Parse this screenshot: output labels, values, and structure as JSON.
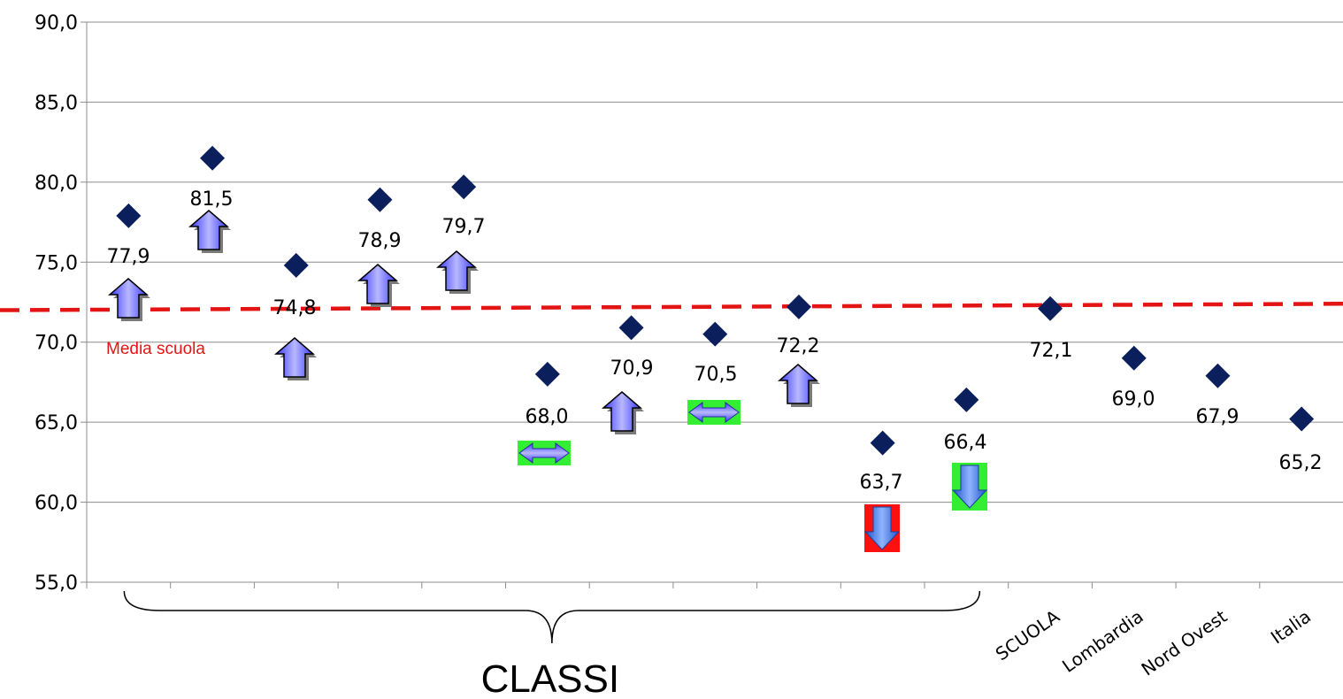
{
  "chart_data": {
    "type": "scatter",
    "ylim": [
      55,
      90
    ],
    "yticks": [
      "55,0",
      "60,0",
      "65,0",
      "70,0",
      "75,0",
      "80,0",
      "85,0",
      "90,0"
    ],
    "grid": true,
    "marker": "diamond",
    "colors": {
      "marker": "#0a1f5c",
      "grid": "#8c8c8c",
      "reference_line": "#e31414",
      "arrow_fill": "#6b6bff",
      "arrow_green_bg": "#33ee33",
      "arrow_red_bg": "#ff1010"
    },
    "points": [
      {
        "value": 77.9,
        "label": "77,9",
        "category": "",
        "trend": "up",
        "highlight": ""
      },
      {
        "value": 81.5,
        "label": "81,5",
        "category": "",
        "trend": "up",
        "highlight": ""
      },
      {
        "value": 74.8,
        "label": "74,8",
        "category": "",
        "trend": "up",
        "highlight": ""
      },
      {
        "value": 78.9,
        "label": "78,9",
        "category": "",
        "trend": "up",
        "highlight": ""
      },
      {
        "value": 79.7,
        "label": "79,7",
        "category": "",
        "trend": "up",
        "highlight": ""
      },
      {
        "value": 68.0,
        "label": "68,0",
        "category": "",
        "trend": "flat",
        "highlight": "green"
      },
      {
        "value": 70.9,
        "label": "70,9",
        "category": "",
        "trend": "up",
        "highlight": ""
      },
      {
        "value": 70.5,
        "label": "70,5",
        "category": "",
        "trend": "flat",
        "highlight": "green"
      },
      {
        "value": 72.2,
        "label": "72,2",
        "category": "",
        "trend": "up",
        "highlight": ""
      },
      {
        "value": 63.7,
        "label": "63,7",
        "category": "",
        "trend": "down",
        "highlight": "red"
      },
      {
        "value": 66.4,
        "label": "66,4",
        "category": "",
        "trend": "down",
        "highlight": "green"
      },
      {
        "value": 72.1,
        "label": "72,1",
        "category": "SCUOLA",
        "trend": "",
        "highlight": ""
      },
      {
        "value": 69.0,
        "label": "69,0",
        "category": "Lombardia",
        "trend": "",
        "highlight": ""
      },
      {
        "value": 67.9,
        "label": "67,9",
        "category": "Nord Ovest",
        "trend": "",
        "highlight": ""
      },
      {
        "value": 65.2,
        "label": "65,2",
        "category": "Italia",
        "trend": "",
        "highlight": ""
      }
    ],
    "reference_line": {
      "label": "Media scuola",
      "value_start": 72.0,
      "value_end": 72.4
    },
    "group_label": {
      "text": "CLASSI",
      "from_index": 0,
      "to_index": 10
    }
  }
}
